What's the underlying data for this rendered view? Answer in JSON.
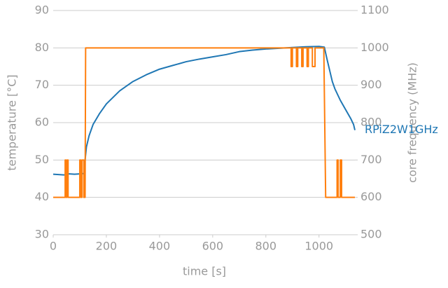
{
  "chart_data": {
    "type": "line",
    "xlabel": "time [s]",
    "ylabel": "temperature [°C]",
    "y2label": "core frequency (MHz)",
    "xlim": [
      0,
      1135
    ],
    "xticks": [
      0,
      200,
      400,
      600,
      800,
      1000
    ],
    "ylim": [
      30,
      90
    ],
    "yticks": [
      30,
      40,
      50,
      60,
      70,
      80,
      90
    ],
    "y2lim": [
      500,
      1100
    ],
    "y2ticks": [
      500,
      600,
      700,
      800,
      900,
      1000,
      1100
    ],
    "grid": true,
    "series": [
      {
        "name": "RPiZ2W1GHz",
        "color": "#1f77b4",
        "axis": "y",
        "x": [
          0,
          20,
          40,
          60,
          80,
          100,
          118,
          120,
          125,
          135,
          150,
          175,
          200,
          250,
          300,
          350,
          400,
          450,
          500,
          550,
          600,
          650,
          700,
          750,
          800,
          850,
          900,
          950,
          1000,
          1020,
          1030,
          1040,
          1050,
          1060,
          1080,
          1100,
          1120,
          1130,
          1135
        ],
        "values": [
          46.2,
          46.1,
          46.0,
          46.3,
          46.2,
          46.3,
          46.4,
          50,
          53.5,
          56.5,
          59.5,
          62.5,
          65,
          68.5,
          71,
          72.8,
          74.3,
          75.3,
          76.3,
          77,
          77.6,
          78.2,
          79,
          79.4,
          79.7,
          79.9,
          80.1,
          80.3,
          80.4,
          80.2,
          77,
          74,
          71,
          69,
          66,
          63.5,
          61,
          59.5,
          58
        ]
      },
      {
        "name": "core frequency",
        "color": "#ff7f0e",
        "axis": "y2",
        "x": [
          0,
          45,
          45,
          48,
          48,
          52,
          52,
          56,
          56,
          100,
          100,
          104,
          104,
          108,
          108,
          115,
          115,
          120,
          122,
          895,
          895,
          900,
          900,
          915,
          915,
          920,
          920,
          935,
          935,
          940,
          940,
          955,
          955,
          960,
          960,
          975,
          975,
          985,
          985,
          1018,
          1025,
          1068,
          1068,
          1072,
          1072,
          1080,
          1080,
          1085,
          1085,
          1135
        ],
        "values": [
          600,
          600,
          700,
          700,
          600,
          600,
          700,
          700,
          600,
          600,
          700,
          700,
          600,
          600,
          700,
          700,
          600,
          600,
          1000,
          1000,
          950,
          950,
          1000,
          1000,
          950,
          950,
          1000,
          1000,
          950,
          950,
          1000,
          1000,
          950,
          950,
          1000,
          1000,
          950,
          950,
          1000,
          1000,
          600,
          600,
          700,
          700,
          600,
          600,
          700,
          700,
          600,
          600
        ]
      }
    ]
  }
}
